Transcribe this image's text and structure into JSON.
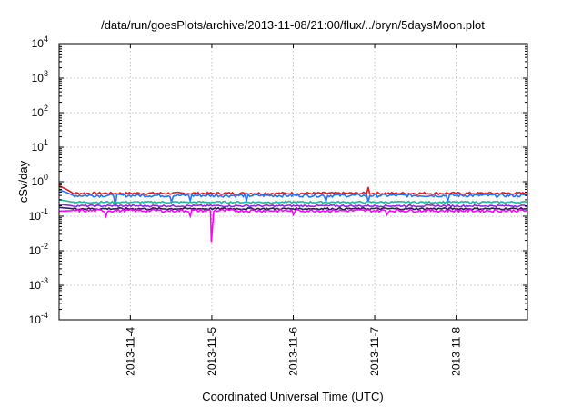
{
  "chart_data": {
    "type": "line",
    "title": "/data/run/goesPlots/archive/2013-11-08/21:00/flux/../bryn/5daysMoon.plot",
    "xlabel": "Coordinated Universal Time (UTC)",
    "ylabel": "cSv/day",
    "yscale": "log",
    "ylim": [
      0.0001,
      10000
    ],
    "xlim": [
      "2013-11-03T03:00",
      "2013-11-08T21:00"
    ],
    "grid": true,
    "legend": "none",
    "x_ticks": [
      "2013-11-4",
      "2013-11-5",
      "2013-11-6",
      "2013-11-7",
      "2013-11-8"
    ],
    "y_ticks": [
      {
        "base": "10",
        "exp": "-4",
        "value": 0.0001
      },
      {
        "base": "10",
        "exp": "-3",
        "value": 0.001
      },
      {
        "base": "10",
        "exp": "-2",
        "value": 0.01
      },
      {
        "base": "10",
        "exp": "-1",
        "value": 0.1
      },
      {
        "base": "10",
        "exp": "0",
        "value": 1
      },
      {
        "base": "10",
        "exp": "1",
        "value": 10
      },
      {
        "base": "10",
        "exp": "2",
        "value": 100
      },
      {
        "base": "10",
        "exp": "3",
        "value": 1000
      },
      {
        "base": "10",
        "exp": "4",
        "value": 10000
      }
    ],
    "series": [
      {
        "color": "#e41a1c",
        "level": 0.46,
        "start": 0.75,
        "noise": 0.08,
        "dips": [],
        "spikes": [
          [
            0.66,
            0.7
          ]
        ]
      },
      {
        "color": "#1f77ff",
        "level": 0.4,
        "start": 0.58,
        "noise": 0.1,
        "dips": [
          [
            0.12,
            0.19
          ],
          [
            0.24,
            0.26
          ],
          [
            0.28,
            0.28
          ],
          [
            0.4,
            0.27
          ],
          [
            0.57,
            0.27
          ],
          [
            0.66,
            0.26
          ],
          [
            0.83,
            0.27
          ]
        ],
        "spikes": []
      },
      {
        "color": "#21b8a0",
        "level": 0.255,
        "start": 0.3,
        "noise": 0.06,
        "dips": [],
        "spikes": []
      },
      {
        "color": "#8a2be2",
        "level": 0.2,
        "start": 0.22,
        "noise": 0.06,
        "dips": [],
        "spikes": []
      },
      {
        "color": "#20205a",
        "level": 0.165,
        "start": 0.18,
        "noise": 0.06,
        "dips": [],
        "spikes": []
      },
      {
        "color": "#ff00ff",
        "level": 0.145,
        "start": 0.14,
        "noise": 0.09,
        "dips": [
          [
            0.325,
            0.018
          ],
          [
            0.1,
            0.1
          ],
          [
            0.28,
            0.1
          ],
          [
            0.5,
            0.11
          ],
          [
            0.7,
            0.11
          ]
        ],
        "spikes": []
      }
    ]
  }
}
